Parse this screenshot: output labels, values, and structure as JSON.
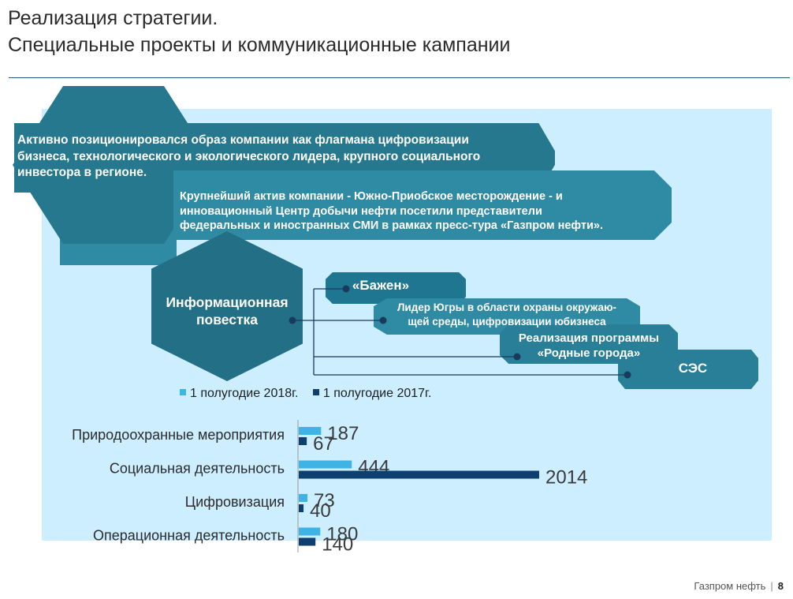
{
  "header": {
    "title_line1": "Реализация стратегии.",
    "title_line2": "Специальные проекты и коммуникационные кампании"
  },
  "diagram": {
    "statement1": [
      "Активно позиционировался образ компании как флагмана цифровизации",
      "бизнеса, технологического и экологического лидера, крупного социального",
      "инвестора в регионе."
    ],
    "statement2": [
      "Крупнейший актив компании - Южно-Приобское месторождение - и",
      "инновационный Центр добычи нефти посетили представители",
      "федеральных и иностранных СМИ в рамках пресс-тура «Газпром нефти»."
    ],
    "center_label": "Информационная повестка",
    "branches": [
      [
        "«Бажен»"
      ],
      [
        "Лидер Югры в области охраны окружаю-",
        "щей среды, цифровизации юбизнеса"
      ],
      [
        "Реализация программы",
        "«Родные города»"
      ],
      [
        "СЭС"
      ]
    ],
    "colors": {
      "hex_dark": "#226f86",
      "ribbon": "#2f8aa3",
      "panel": "#cceeff",
      "connector": "#1a3a5c"
    }
  },
  "legend": {
    "series_2018": "1 полугодие 2018г.",
    "series_2017": "1 полугодие 2017г.",
    "color_2018": "#3fb3e3",
    "color_2017": "#0e3f6e"
  },
  "chart_data": {
    "type": "bar",
    "orientation": "horizontal",
    "categories": [
      "Природоохранные мероприятия",
      "Социальная деятельность",
      "Цифровизация",
      "Операционная деятельность"
    ],
    "series": [
      {
        "name": "1 полугодие 2018г.",
        "values": [
          187,
          444,
          73,
          180
        ]
      },
      {
        "name": "1 полугодие 2017г.",
        "values": [
          67,
          2014,
          40,
          140
        ]
      }
    ],
    "xlim": [
      0,
      2014
    ],
    "grid": false,
    "legend_position": "top"
  },
  "footer": {
    "brand": "Газпром нефть",
    "separator": "|",
    "page": "8"
  }
}
